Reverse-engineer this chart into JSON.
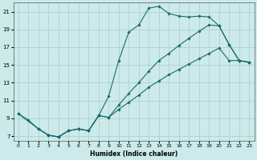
{
  "xlabel": "Humidex (Indice chaleur)",
  "bg_color": "#cceaea",
  "grid_color": "#aacccc",
  "line_color": "#1a6b6b",
  "xlim": [
    -0.5,
    23.5
  ],
  "ylim": [
    6.5,
    22.0
  ],
  "yticks": [
    7,
    9,
    11,
    13,
    15,
    17,
    19,
    21
  ],
  "xticks": [
    0,
    1,
    2,
    3,
    4,
    5,
    6,
    7,
    8,
    9,
    10,
    11,
    12,
    13,
    14,
    15,
    16,
    17,
    18,
    19,
    20,
    21,
    22,
    23
  ],
  "curve1_x": [
    0,
    1,
    2,
    3,
    4,
    5,
    6,
    7,
    8,
    9,
    10,
    11,
    12,
    13,
    14,
    15,
    16,
    17,
    18,
    19,
    20,
    21,
    22,
    23
  ],
  "curve1_y": [
    9.5,
    8.8,
    7.8,
    7.1,
    6.9,
    7.6,
    7.8,
    7.6,
    9.3,
    11.5,
    15.5,
    18.7,
    19.5,
    21.4,
    21.6,
    20.8,
    20.5,
    20.4,
    20.5,
    20.4,
    19.4,
    17.3,
    15.5,
    15.3
  ],
  "curve2_x": [
    0,
    2,
    3,
    4,
    5,
    6,
    7,
    8,
    9,
    10,
    11,
    12,
    13,
    14,
    15,
    16,
    17,
    18,
    19,
    20,
    21,
    22,
    23
  ],
  "curve2_y": [
    9.5,
    7.8,
    7.1,
    6.9,
    7.6,
    7.8,
    7.6,
    9.3,
    9.1,
    10.5,
    11.8,
    13.0,
    14.3,
    15.5,
    16.3,
    17.2,
    18.0,
    18.8,
    19.5,
    19.4,
    17.3,
    15.5,
    15.3
  ],
  "curve3_x": [
    2,
    3,
    4,
    5,
    6,
    7,
    8,
    9,
    10,
    11,
    12,
    13,
    14,
    15,
    16,
    17,
    18,
    19,
    20,
    21,
    22,
    23
  ],
  "curve3_y": [
    7.8,
    7.1,
    6.9,
    7.6,
    7.8,
    7.6,
    9.3,
    9.1,
    10.0,
    10.8,
    11.6,
    12.5,
    13.2,
    13.9,
    14.5,
    15.1,
    15.7,
    16.3,
    16.9,
    15.5,
    15.5,
    15.3
  ]
}
